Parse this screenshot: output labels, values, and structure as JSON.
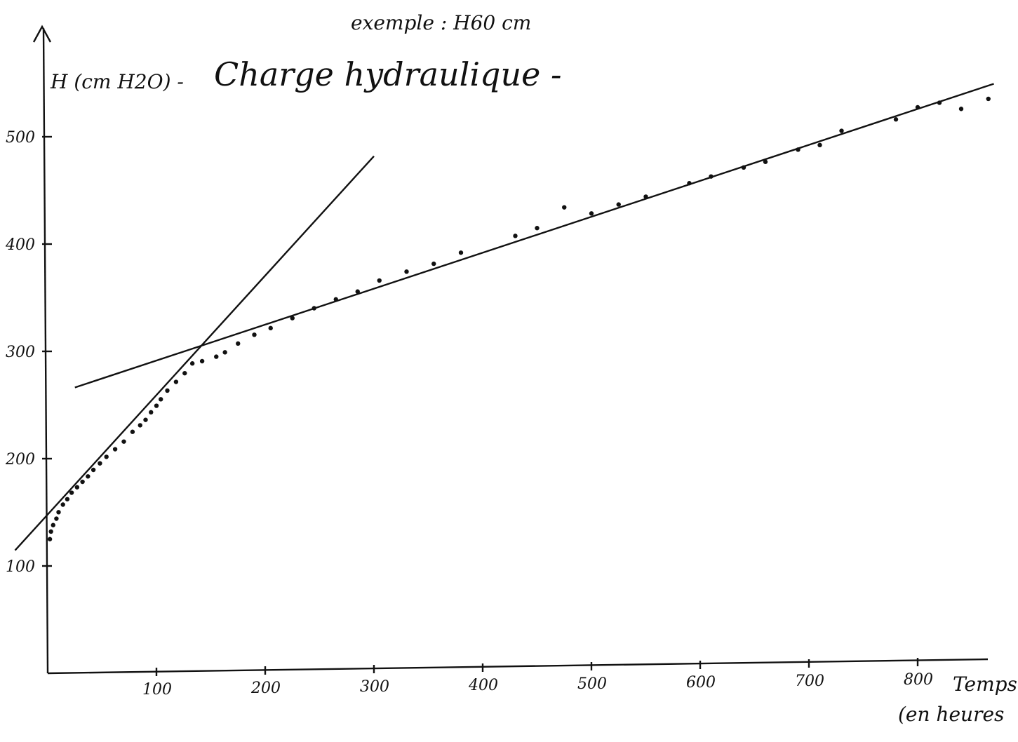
{
  "chart_data": {
    "type": "scatter",
    "title": "Charge hydraulique -",
    "subtitle": "exemple : H60 cm",
    "ylabel": "H (cm H2O) -",
    "xlabel": "Temps",
    "xlabel_unit": "(en heures",
    "xlim": [
      0,
      870
    ],
    "ylim": [
      0,
      560
    ],
    "x_ticks": [
      100,
      200,
      300,
      400,
      500,
      600,
      700,
      800
    ],
    "y_ticks": [
      100,
      200,
      300,
      400,
      500
    ],
    "x_tick_labels": [
      "100",
      "200",
      "300",
      "400",
      "500",
      "600",
      "700",
      "800"
    ],
    "y_tick_labels": [
      "100",
      "200",
      "300",
      "400",
      "500"
    ],
    "grid": false,
    "legend": "none",
    "series": [
      {
        "type": "scatter",
        "points": [
          [
            2,
            125
          ],
          [
            3,
            132
          ],
          [
            5,
            138
          ],
          [
            8,
            144
          ],
          [
            10,
            150
          ],
          [
            14,
            157
          ],
          [
            18,
            162
          ],
          [
            22,
            168
          ],
          [
            27,
            173
          ],
          [
            32,
            178
          ],
          [
            37,
            183
          ],
          [
            42,
            189
          ],
          [
            48,
            195
          ],
          [
            54,
            201
          ],
          [
            62,
            208
          ],
          [
            70,
            215
          ],
          [
            78,
            224
          ],
          [
            85,
            230
          ],
          [
            90,
            235
          ],
          [
            95,
            242
          ],
          [
            100,
            248
          ],
          [
            104,
            254
          ],
          [
            110,
            262
          ],
          [
            118,
            270
          ],
          [
            126,
            278
          ],
          [
            133,
            287
          ],
          [
            142,
            289
          ],
          [
            155,
            293
          ],
          [
            163,
            297
          ],
          [
            175,
            305
          ],
          [
            190,
            313
          ],
          [
            205,
            319
          ],
          [
            225,
            328
          ],
          [
            245,
            337
          ],
          [
            265,
            345
          ],
          [
            285,
            352
          ],
          [
            305,
            362
          ],
          [
            330,
            370
          ],
          [
            355,
            377
          ],
          [
            380,
            387
          ],
          [
            430,
            402
          ],
          [
            450,
            409
          ],
          [
            475,
            428
          ],
          [
            500,
            422
          ],
          [
            525,
            430
          ],
          [
            550,
            437
          ],
          [
            590,
            449
          ],
          [
            610,
            455
          ],
          [
            640,
            463
          ],
          [
            660,
            468
          ],
          [
            690,
            479
          ],
          [
            710,
            483
          ],
          [
            730,
            496
          ],
          [
            780,
            506
          ],
          [
            800,
            517
          ],
          [
            820,
            521
          ],
          [
            840,
            515
          ],
          [
            865,
            524
          ]
        ]
      },
      {
        "type": "line",
        "points": [
          [
            -30,
            115
          ],
          [
            300,
            478
          ]
        ]
      },
      {
        "type": "line",
        "points": [
          [
            25,
            266
          ],
          [
            870,
            538
          ]
        ]
      }
    ]
  }
}
